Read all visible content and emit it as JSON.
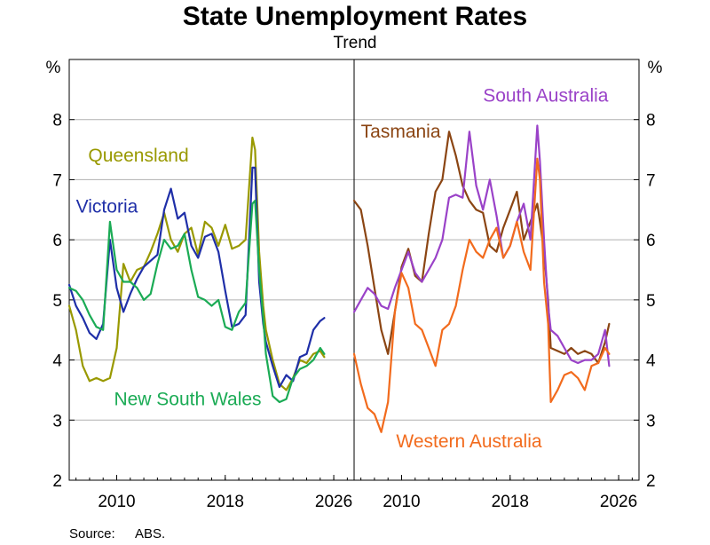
{
  "chart_data": [
    {
      "type": "line",
      "title": "State Unemployment Rates",
      "subtitle": "Trend",
      "panel": "left",
      "ylabel": "%",
      "ylim": [
        2,
        9
      ],
      "yticks": [
        2,
        3,
        4,
        5,
        6,
        7,
        8
      ],
      "xlim": [
        2006.5,
        2027.5
      ],
      "xticks": [
        2010,
        2018,
        2026
      ],
      "grid": true,
      "series": [
        {
          "name": "Queensland",
          "color": "#999900",
          "label_year": 2007.9,
          "label_value": 7.3,
          "x": [
            2006.5,
            2007,
            2007.5,
            2008,
            2008.5,
            2009,
            2009.5,
            2010,
            2010.5,
            2011,
            2011.5,
            2012,
            2012.5,
            2013,
            2013.5,
            2014,
            2014.5,
            2015,
            2015.5,
            2016,
            2016.5,
            2017,
            2017.5,
            2018,
            2018.5,
            2019,
            2019.5,
            2020,
            2020.2,
            2020.5,
            2020.8,
            2021,
            2021.5,
            2022,
            2022.5,
            2023,
            2023.5,
            2024,
            2024.5,
            2025,
            2025.3
          ],
          "values": [
            4.9,
            4.5,
            3.9,
            3.65,
            3.7,
            3.65,
            3.7,
            4.2,
            5.6,
            5.3,
            5.5,
            5.55,
            5.8,
            6.1,
            6.45,
            6.0,
            5.8,
            6.1,
            6.2,
            5.75,
            6.3,
            6.2,
            5.9,
            6.25,
            5.85,
            5.9,
            6.0,
            7.7,
            7.5,
            5.8,
            4.9,
            4.5,
            4.0,
            3.6,
            3.5,
            3.7,
            4.0,
            3.95,
            4.1,
            4.15,
            4.05
          ]
        },
        {
          "name": "Victoria",
          "color": "#1f2fa8",
          "label_year": 2007.0,
          "label_value": 6.45,
          "x": [
            2006.5,
            2007,
            2007.5,
            2008,
            2008.5,
            2009,
            2009.5,
            2010,
            2010.5,
            2011,
            2011.5,
            2012,
            2012.5,
            2013,
            2013.5,
            2014,
            2014.5,
            2015,
            2015.5,
            2016,
            2016.5,
            2017,
            2017.5,
            2018,
            2018.5,
            2019,
            2019.5,
            2020,
            2020.2,
            2020.5,
            2020.8,
            2021,
            2021.5,
            2022,
            2022.5,
            2023,
            2023.5,
            2024,
            2024.5,
            2025,
            2025.3
          ],
          "values": [
            5.25,
            4.9,
            4.7,
            4.45,
            4.35,
            4.6,
            6.0,
            5.2,
            4.8,
            5.1,
            5.35,
            5.55,
            5.65,
            5.75,
            6.5,
            6.85,
            6.35,
            6.45,
            5.9,
            5.7,
            6.05,
            6.1,
            5.8,
            5.15,
            4.55,
            4.6,
            4.75,
            7.2,
            7.2,
            5.3,
            4.6,
            4.3,
            3.9,
            3.55,
            3.75,
            3.65,
            4.05,
            4.1,
            4.5,
            4.65,
            4.7
          ]
        },
        {
          "name": "New South Wales",
          "color": "#1bab55",
          "label_year": 2009.8,
          "label_value": 3.25,
          "x": [
            2006.5,
            2007,
            2007.5,
            2008,
            2008.5,
            2009,
            2009.5,
            2010,
            2010.5,
            2011,
            2011.5,
            2012,
            2012.5,
            2013,
            2013.5,
            2014,
            2014.5,
            2015,
            2015.5,
            2016,
            2016.5,
            2017,
            2017.5,
            2018,
            2018.5,
            2019,
            2019.5,
            2020,
            2020.2,
            2020.5,
            2020.8,
            2021,
            2021.5,
            2022,
            2022.5,
            2023,
            2023.5,
            2024,
            2024.5,
            2025,
            2025.3
          ],
          "values": [
            5.2,
            5.15,
            5.0,
            4.75,
            4.55,
            4.5,
            6.3,
            5.5,
            5.3,
            5.3,
            5.2,
            5.0,
            5.1,
            5.6,
            6.0,
            5.85,
            5.9,
            6.1,
            5.5,
            5.05,
            5.0,
            4.9,
            5.0,
            4.55,
            4.5,
            4.8,
            4.95,
            6.6,
            6.65,
            5.5,
            4.7,
            4.1,
            3.4,
            3.3,
            3.35,
            3.7,
            3.85,
            3.9,
            4.0,
            4.2,
            4.1
          ]
        }
      ]
    },
    {
      "type": "line",
      "panel": "right",
      "ylabel": "%",
      "ylim": [
        2,
        9
      ],
      "yticks": [
        2,
        3,
        4,
        5,
        6,
        7,
        8
      ],
      "xlim": [
        2006.5,
        2027.5
      ],
      "xticks": [
        2010,
        2018,
        2026
      ],
      "grid": true,
      "series": [
        {
          "name": "Tasmania",
          "color": "#8b4513",
          "label_year": 2007.0,
          "label_value": 7.7,
          "x": [
            2006.5,
            2007,
            2007.5,
            2008,
            2008.5,
            2009,
            2009.5,
            2010,
            2010.5,
            2011,
            2011.5,
            2012,
            2012.5,
            2013,
            2013.5,
            2014,
            2014.5,
            2015,
            2015.5,
            2016,
            2016.5,
            2017,
            2017.5,
            2018,
            2018.5,
            2019,
            2019.5,
            2020,
            2020.2,
            2020.5,
            2020.8,
            2021,
            2021.5,
            2022,
            2022.5,
            2023,
            2023.5,
            2024,
            2024.5,
            2025,
            2025.3
          ],
          "values": [
            6.65,
            6.5,
            5.9,
            5.2,
            4.5,
            4.1,
            4.8,
            5.55,
            5.85,
            5.4,
            5.3,
            6.1,
            6.8,
            7.0,
            7.8,
            7.4,
            6.9,
            6.65,
            6.5,
            6.45,
            5.9,
            5.8,
            6.2,
            6.5,
            6.8,
            6.0,
            6.3,
            6.6,
            6.3,
            5.8,
            5.0,
            4.2,
            4.15,
            4.1,
            4.2,
            4.1,
            4.15,
            4.1,
            3.95,
            4.3,
            4.6
          ]
        },
        {
          "name": "South Australia",
          "color": "#9a42c8",
          "label_year": 2016.0,
          "label_value": 8.3,
          "x": [
            2006.5,
            2007,
            2007.5,
            2008,
            2008.5,
            2009,
            2009.5,
            2010,
            2010.5,
            2011,
            2011.5,
            2012,
            2012.5,
            2013,
            2013.5,
            2014,
            2014.5,
            2015,
            2015.5,
            2016,
            2016.5,
            2017,
            2017.5,
            2018,
            2018.5,
            2019,
            2019.5,
            2020,
            2020.2,
            2020.5,
            2020.8,
            2021,
            2021.5,
            2022,
            2022.5,
            2023,
            2023.5,
            2024,
            2024.5,
            2025,
            2025.3
          ],
          "values": [
            4.8,
            5.0,
            5.2,
            5.1,
            4.9,
            4.85,
            5.2,
            5.5,
            5.8,
            5.45,
            5.3,
            5.5,
            5.7,
            6.0,
            6.7,
            6.75,
            6.7,
            7.8,
            6.9,
            6.5,
            7.0,
            6.4,
            5.7,
            5.9,
            6.3,
            6.6,
            6.0,
            7.9,
            7.3,
            6.0,
            4.9,
            4.5,
            4.4,
            4.2,
            4.0,
            3.95,
            4.0,
            4.0,
            4.1,
            4.5,
            3.9
          ]
        },
        {
          "name": "Western Australia",
          "color": "#f26b1d",
          "label_year": 2009.6,
          "label_value": 2.55,
          "x": [
            2006.5,
            2007,
            2007.5,
            2008,
            2008.5,
            2009,
            2009.5,
            2010,
            2010.5,
            2011,
            2011.5,
            2012,
            2012.5,
            2013,
            2013.5,
            2014,
            2014.5,
            2015,
            2015.5,
            2016,
            2016.5,
            2017,
            2017.5,
            2018,
            2018.5,
            2019,
            2019.5,
            2020,
            2020.2,
            2020.5,
            2020.8,
            2021,
            2021.5,
            2022,
            2022.5,
            2023,
            2023.5,
            2024,
            2024.5,
            2025,
            2025.3
          ],
          "values": [
            4.1,
            3.6,
            3.2,
            3.1,
            2.8,
            3.3,
            4.8,
            5.45,
            5.2,
            4.6,
            4.5,
            4.2,
            3.9,
            4.5,
            4.6,
            4.9,
            5.5,
            6.0,
            5.8,
            5.7,
            6.0,
            6.2,
            5.7,
            5.9,
            6.3,
            5.8,
            5.5,
            7.35,
            7.0,
            5.3,
            4.6,
            3.3,
            3.5,
            3.75,
            3.8,
            3.7,
            3.5,
            3.9,
            3.95,
            4.2,
            4.1
          ]
        }
      ]
    }
  ],
  "source": {
    "label": "Source:",
    "value": "ABS."
  }
}
